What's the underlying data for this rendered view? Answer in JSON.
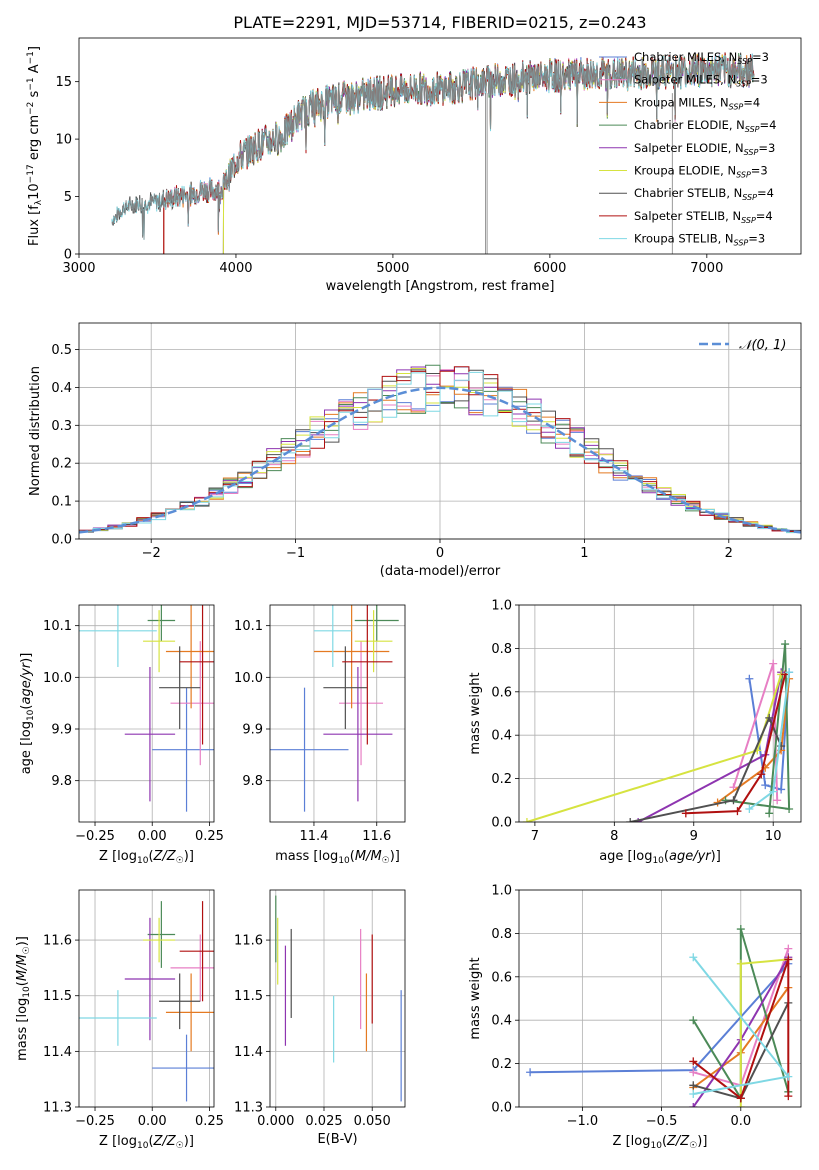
{
  "figure_title": "PLATE=2291, MJD=53714, FIBERID=0215, z=0.243",
  "colors": {
    "chabrier_miles": "#5b7fd6",
    "salpeter_miles": "#e77fc4",
    "kroupa_miles": "#e47a22",
    "chabrier_elodie": "#4c8a58",
    "salpeter_elodie": "#8e35b0",
    "kroupa_elodie": "#d6e340",
    "chabrier_stelib": "#505050",
    "salpeter_stelib": "#b01010",
    "kroupa_stelib": "#7fd8e4"
  },
  "chart_data": [
    {
      "id": "spectrum",
      "type": "line",
      "title": "PLATE=2291, MJD=53714, FIBERID=0215, z=0.243",
      "xlabel": "wavelength [Angstrom, rest frame]",
      "ylabel": "Flux [f_λ 10^-17 erg cm^-2 s^-1 A^-1]",
      "xlim": [
        3000,
        7600
      ],
      "ylim": [
        0,
        18.8
      ],
      "xticks": [
        "3000",
        "4000",
        "5000",
        "6000",
        "7000"
      ],
      "yticks": [
        "0",
        "5",
        "10",
        "15"
      ],
      "legend_position": "upper right",
      "legend": [
        {
          "label": "Chabrier MILES, N",
          "sub": "SSP",
          "suffix": "=3"
        },
        {
          "label": "Salpeter MILES, N",
          "sub": "SSP",
          "suffix": "=3"
        },
        {
          "label": "Kroupa MILES, N",
          "sub": "SSP",
          "suffix": "=4"
        },
        {
          "label": "Chabrier ELODIE, N",
          "sub": "SSP",
          "suffix": "=4"
        },
        {
          "label": "Salpeter ELODIE, N",
          "sub": "SSP",
          "suffix": "=3"
        },
        {
          "label": "Kroupa ELODIE, N",
          "sub": "SSP",
          "suffix": "=3"
        },
        {
          "label": "Chabrier STELIB, N",
          "sub": "SSP",
          "suffix": "=4"
        },
        {
          "label": "Salpeter STELIB, N",
          "sub": "SSP",
          "suffix": "=4"
        },
        {
          "label": "Kroupa STELIB, N",
          "sub": "SSP",
          "suffix": "=3"
        }
      ],
      "data_observed": {
        "x": [
          3210,
          3280,
          3350,
          3420,
          3500,
          3600,
          3700,
          3800,
          3900,
          3950,
          4000,
          4100,
          4200,
          4300,
          4400,
          4500,
          4600,
          4700,
          4800,
          4900,
          5000,
          5100,
          5200,
          5300,
          5400,
          5500,
          5600,
          5700,
          5800,
          5900,
          6000,
          6100,
          6200,
          6300,
          6400,
          6500,
          6600,
          6700,
          6800,
          6900,
          7000,
          7100,
          7200,
          7300
        ],
        "y": [
          2.8,
          4.0,
          4.3,
          4.4,
          4.6,
          4.9,
          5.2,
          5.6,
          5.5,
          6.6,
          8.2,
          9.2,
          9.8,
          10.3,
          12.1,
          12.9,
          13.3,
          13.6,
          13.8,
          14.0,
          14.2,
          14.3,
          14.4,
          14.4,
          14.5,
          14.8,
          15.0,
          15.2,
          15.3,
          15.4,
          15.5,
          15.5,
          15.6,
          15.7,
          15.6,
          15.7,
          15.8,
          15.8,
          15.9,
          15.9,
          16.0,
          16.0,
          16.0,
          16.0
        ]
      },
      "data_model_start": {
        "chabrier_miles": 3540,
        "salpeter_miles": 3540,
        "kroupa_miles": 3540,
        "chabrier_elodie": 3920,
        "salpeter_elodie": 3920,
        "kroupa_elodie": 3920,
        "chabrier_stelib": 3210,
        "salpeter_stelib": 3540,
        "kroupa_stelib": 3210
      }
    },
    {
      "id": "residuals",
      "type": "histogram",
      "xlabel": "(data-model)/error",
      "ylabel": "Normed distribution",
      "xlim": [
        -2.5,
        2.5
      ],
      "ylim": [
        0,
        0.57
      ],
      "xticks": [
        "−2",
        "−1",
        "0",
        "1",
        "2"
      ],
      "yticks": [
        "0.0",
        "0.1",
        "0.2",
        "0.3",
        "0.4",
        "0.5"
      ],
      "reference_curve": {
        "name": "𝒩(0, 1)",
        "type": "normal",
        "mean": 0,
        "sigma": 1
      },
      "bin_width": 0.1,
      "bins_start": -2.5
    },
    {
      "id": "age_vs_Z",
      "type": "errorbar",
      "xlabel": "Z [log₁₀(Z/Z☉)]",
      "ylabel": "age  [log₁₀(age/yr)]",
      "xlim": [
        -0.32,
        0.27
      ],
      "ylim": [
        9.72,
        10.14
      ],
      "xticks": [
        "−0.25",
        "0.00",
        "0.25"
      ],
      "yticks": [
        "9.8",
        "9.9",
        "10.0",
        "10.1"
      ],
      "points": [
        {
          "series": "chabrier_miles",
          "x": 0.15,
          "xerr": 0.15,
          "y": 9.86,
          "yerr": 0.12
        },
        {
          "series": "salpeter_miles",
          "x": 0.21,
          "xerr": 0.13,
          "y": 9.95,
          "yerr": 0.12
        },
        {
          "series": "kroupa_miles",
          "x": 0.17,
          "xerr": 0.11,
          "y": 10.05,
          "yerr": 0.11
        },
        {
          "series": "chabrier_elodie",
          "x": 0.04,
          "xerr": 0.06,
          "y": 10.11,
          "yerr": 0.04
        },
        {
          "series": "salpeter_elodie",
          "x": -0.01,
          "xerr": 0.11,
          "y": 9.89,
          "yerr": 0.13
        },
        {
          "series": "kroupa_elodie",
          "x": 0.03,
          "xerr": 0.07,
          "y": 10.07,
          "yerr": 0.06
        },
        {
          "series": "chabrier_stelib",
          "x": 0.12,
          "xerr": 0.09,
          "y": 9.98,
          "yerr": 0.08
        },
        {
          "series": "salpeter_stelib",
          "x": 0.22,
          "xerr": 0.1,
          "y": 10.03,
          "yerr": 0.16
        },
        {
          "series": "kroupa_stelib",
          "x": -0.15,
          "xerr": 0.17,
          "y": 10.09,
          "yerr": 0.07
        }
      ]
    },
    {
      "id": "age_vs_mass",
      "type": "errorbar",
      "xlabel": "mass [log₁₀(M/M☉)]",
      "ylabel": "",
      "xlim": [
        11.26,
        11.69
      ],
      "ylim": [
        9.72,
        10.14
      ],
      "xticks": [
        "11.4",
        "11.6"
      ],
      "yticks": [
        "9.8",
        "9.9",
        "10.0",
        "10.1"
      ],
      "points": [
        {
          "series": "chabrier_miles",
          "x": 11.37,
          "xerr": 0.14,
          "y": 9.86,
          "yerr": 0.12
        },
        {
          "series": "salpeter_miles",
          "x": 11.55,
          "xerr": 0.07,
          "y": 9.95,
          "yerr": 0.12
        },
        {
          "series": "kroupa_miles",
          "x": 11.52,
          "xerr": 0.12,
          "y": 10.05,
          "yerr": 0.11
        },
        {
          "series": "chabrier_elodie",
          "x": 11.6,
          "xerr": 0.07,
          "y": 10.11,
          "yerr": 0.04
        },
        {
          "series": "salpeter_elodie",
          "x": 11.54,
          "xerr": 0.11,
          "y": 9.89,
          "yerr": 0.13
        },
        {
          "series": "kroupa_elodie",
          "x": 11.59,
          "xerr": 0.06,
          "y": 10.07,
          "yerr": 0.06
        },
        {
          "series": "chabrier_stelib",
          "x": 11.5,
          "xerr": 0.07,
          "y": 9.98,
          "yerr": 0.08
        },
        {
          "series": "salpeter_stelib",
          "x": 11.57,
          "xerr": 0.08,
          "y": 10.03,
          "yerr": 0.16
        },
        {
          "series": "kroupa_stelib",
          "x": 11.46,
          "xerr": 0.06,
          "y": 10.09,
          "yerr": 0.07
        }
      ]
    },
    {
      "id": "weight_vs_age",
      "type": "line",
      "xlabel": "age  [log₁₀(age/yr)]",
      "ylabel": "mass weight",
      "xlim": [
        6.8,
        10.35
      ],
      "ylim": [
        0,
        1.0
      ],
      "xticks": [
        "7",
        "8",
        "9",
        "10"
      ],
      "yticks": [
        "0.0",
        "0.2",
        "0.4",
        "0.6",
        "0.8",
        "1.0"
      ],
      "series": [
        {
          "name": "chabrier_miles",
          "x": [
            9.7,
            9.9,
            10.1,
            10.2
          ],
          "y": [
            0.66,
            0.17,
            0.15,
            0.69
          ]
        },
        {
          "name": "salpeter_miles",
          "x": [
            9.5,
            10.0,
            10.05
          ],
          "y": [
            0.16,
            0.73,
            0.1
          ]
        },
        {
          "name": "kroupa_miles",
          "x": [
            9.3,
            9.9,
            10.1,
            10.2
          ],
          "y": [
            0.09,
            0.25,
            0.33,
            0.66
          ]
        },
        {
          "name": "chabrier_elodie",
          "x": [
            9.95,
            10.15,
            10.2,
            9.4
          ],
          "y": [
            0.04,
            0.82,
            0.06,
            0.1
          ]
        },
        {
          "name": "salpeter_elodie",
          "x": [
            8.3,
            9.9,
            10.1
          ],
          "y": [
            0.0,
            0.31,
            0.69
          ]
        },
        {
          "name": "kroupa_elodie",
          "x": [
            6.9,
            9.8,
            10.1
          ],
          "y": [
            0.0,
            0.33,
            0.68
          ]
        },
        {
          "name": "chabrier_stelib",
          "x": [
            8.2,
            9.5,
            9.95,
            10.1
          ],
          "y": [
            0.0,
            0.1,
            0.48,
            0.35
          ]
        },
        {
          "name": "salpeter_stelib",
          "x": [
            8.9,
            9.55,
            9.85,
            10.15
          ],
          "y": [
            0.04,
            0.05,
            0.22,
            0.68
          ]
        },
        {
          "name": "kroupa_stelib",
          "x": [
            9.7,
            10.0,
            10.2
          ],
          "y": [
            0.06,
            0.14,
            0.69
          ]
        }
      ]
    },
    {
      "id": "mass_vs_Z",
      "type": "errorbar",
      "xlabel": "Z [log₁₀(Z/Z☉)]",
      "ylabel": "mass [log₁₀(M/M☉)]",
      "xlim": [
        -0.32,
        0.27
      ],
      "ylim": [
        11.3,
        11.69
      ],
      "xticks": [
        "−0.25",
        "0.00",
        "0.25"
      ],
      "yticks": [
        "11.3",
        "11.4",
        "11.5",
        "11.6"
      ],
      "points": [
        {
          "series": "chabrier_miles",
          "x": 0.15,
          "xerr": 0.15,
          "y": 11.37,
          "yerr": 0.06
        },
        {
          "series": "salpeter_miles",
          "x": 0.21,
          "xerr": 0.13,
          "y": 11.55,
          "yerr": 0.06
        },
        {
          "series": "kroupa_miles",
          "x": 0.17,
          "xerr": 0.11,
          "y": 11.47,
          "yerr": 0.07
        },
        {
          "series": "chabrier_elodie",
          "x": 0.04,
          "xerr": 0.06,
          "y": 11.61,
          "yerr": 0.06
        },
        {
          "series": "salpeter_elodie",
          "x": -0.01,
          "xerr": 0.11,
          "y": 11.53,
          "yerr": 0.11
        },
        {
          "series": "kroupa_elodie",
          "x": 0.03,
          "xerr": 0.07,
          "y": 11.6,
          "yerr": 0.04
        },
        {
          "series": "chabrier_stelib",
          "x": 0.12,
          "xerr": 0.09,
          "y": 11.49,
          "yerr": 0.05
        },
        {
          "series": "salpeter_stelib",
          "x": 0.22,
          "xerr": 0.1,
          "y": 11.58,
          "yerr": 0.09
        },
        {
          "series": "kroupa_stelib",
          "x": -0.15,
          "xerr": 0.17,
          "y": 11.46,
          "yerr": 0.05
        }
      ]
    },
    {
      "id": "mass_vs_ebv",
      "type": "errorbar",
      "xlabel": "E(B-V)",
      "ylabel": "",
      "xlim": [
        -0.003,
        0.067
      ],
      "ylim": [
        11.3,
        11.69
      ],
      "xticks": [
        "0.000",
        "0.025",
        "0.050"
      ],
      "yticks": [
        "11.3",
        "11.4",
        "11.5",
        "11.6"
      ],
      "points": [
        {
          "series": "chabrier_miles",
          "x": 0.065,
          "y": 11.41,
          "yerr": 0.1
        },
        {
          "series": "salpeter_miles",
          "x": 0.044,
          "y": 11.53,
          "yerr": 0.09
        },
        {
          "series": "kroupa_miles",
          "x": 0.047,
          "y": 11.47,
          "yerr": 0.07
        },
        {
          "series": "chabrier_elodie",
          "x": 0.0,
          "y": 11.62,
          "yerr": 0.06
        },
        {
          "series": "salpeter_elodie",
          "x": 0.005,
          "y": 11.5,
          "yerr": 0.09
        },
        {
          "series": "kroupa_elodie",
          "x": 0.001,
          "y": 11.58,
          "yerr": 0.06
        },
        {
          "series": "chabrier_stelib",
          "x": 0.008,
          "y": 11.54,
          "yerr": 0.08
        },
        {
          "series": "salpeter_stelib",
          "x": 0.05,
          "y": 11.53,
          "yerr": 0.08
        },
        {
          "series": "kroupa_stelib",
          "x": 0.03,
          "y": 11.44,
          "yerr": 0.06
        }
      ]
    },
    {
      "id": "weight_vs_Z",
      "type": "line",
      "xlabel": "Z [log₁₀(Z/Z☉)]",
      "ylabel": "mass weight",
      "xlim": [
        -1.4,
        0.38
      ],
      "ylim": [
        0,
        1.0
      ],
      "xticks": [
        "−1.0",
        "−0.5",
        "0.0"
      ],
      "yticks": [
        "0.0",
        "0.2",
        "0.4",
        "0.6",
        "0.8",
        "1.0"
      ],
      "series": [
        {
          "name": "chabrier_miles",
          "x": [
            -1.33,
            -0.3,
            0.3
          ],
          "y": [
            0.16,
            0.17,
            0.66
          ]
        },
        {
          "name": "salpeter_miles",
          "x": [
            -0.3,
            0.0,
            0.3
          ],
          "y": [
            0.16,
            0.1,
            0.73
          ]
        },
        {
          "name": "kroupa_miles",
          "x": [
            -0.3,
            0.0,
            0.3
          ],
          "y": [
            0.09,
            0.25,
            0.55
          ]
        },
        {
          "name": "chabrier_elodie",
          "x": [
            -0.3,
            0.0,
            0.0,
            0.3
          ],
          "y": [
            0.4,
            0.04,
            0.82,
            0.07
          ]
        },
        {
          "name": "salpeter_elodie",
          "x": [
            -0.3,
            0.0,
            0.3
          ],
          "y": [
            0.0,
            0.31,
            0.69
          ]
        },
        {
          "name": "kroupa_elodie",
          "x": [
            0.0,
            0.0,
            0.3
          ],
          "y": [
            0.0,
            0.66,
            0.68
          ]
        },
        {
          "name": "chabrier_stelib",
          "x": [
            -0.3,
            0.0,
            0.3
          ],
          "y": [
            0.1,
            0.04,
            0.48
          ]
        },
        {
          "name": "salpeter_stelib",
          "x": [
            -0.3,
            0.0,
            0.3,
            0.3
          ],
          "y": [
            0.21,
            0.04,
            0.68,
            0.05
          ]
        },
        {
          "name": "kroupa_stelib",
          "x": [
            -0.3,
            0.3,
            -0.3
          ],
          "y": [
            0.69,
            0.14,
            0.06
          ]
        }
      ]
    }
  ]
}
